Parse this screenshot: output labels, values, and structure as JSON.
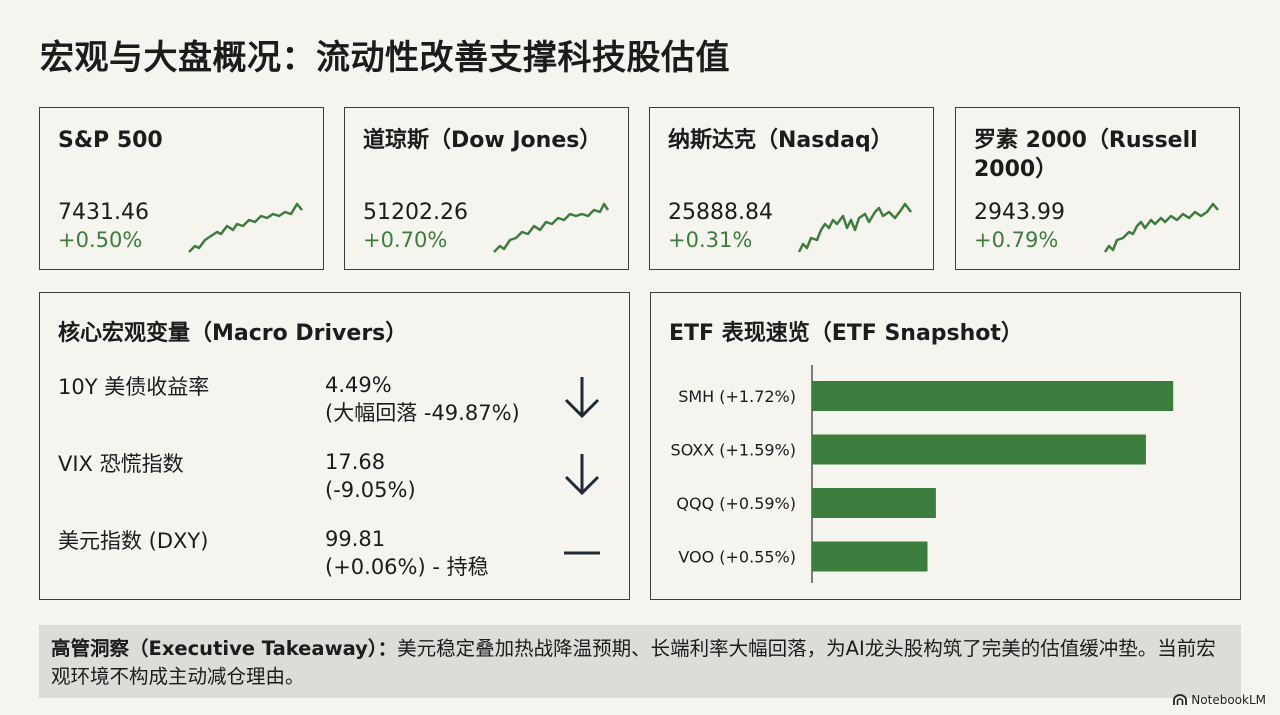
{
  "title": "宏观与大盘概况：流动性改善支撑科技股估值",
  "indices": [
    {
      "name": "S&P 500",
      "value": "7431.46",
      "change": "+0.50%"
    },
    {
      "name": "道琼斯（Dow Jones）",
      "value": "51202.26",
      "change": "+0.70%"
    },
    {
      "name": "纳斯达克（Nasdaq）",
      "value": "25888.84",
      "change": "+0.31%"
    },
    {
      "name": "罗素 2000（Russell 2000）",
      "value": "2943.99",
      "change": "+0.79%"
    }
  ],
  "colors": {
    "positive": "#3c7d3c",
    "bar": "#3b7d3c",
    "text": "#1c1c1c"
  },
  "macro": {
    "title": "核心宏观变量（Macro Drivers）",
    "rows": [
      {
        "label": "10Y 美债收益率",
        "value_line1": "4.49%",
        "value_line2": "(大幅回落 -49.87%)",
        "icon": "arrow-down-icon"
      },
      {
        "label": "VIX 恐慌指数",
        "value_line1": "17.68",
        "value_line2": "(-9.05%)",
        "icon": "arrow-down-icon"
      },
      {
        "label": "美元指数 (DXY)",
        "value_line1": "99.81",
        "value_line2": "(+0.06%) - 持稳",
        "icon": "flat-dash-icon"
      }
    ]
  },
  "etf": {
    "title": "ETF 表现速览（ETF Snapshot）"
  },
  "chart_data": {
    "type": "bar",
    "orientation": "horizontal",
    "categories": [
      "SMH (+1.72%)",
      "SOXX (+1.59%)",
      "QQQ (+0.59%)",
      "VOO (+0.55%)"
    ],
    "values": [
      1.72,
      1.59,
      0.59,
      0.55
    ],
    "xlim": [
      0,
      2.0
    ],
    "grid": false
  },
  "takeaway": {
    "label": "高管洞察（Executive Takeaway）：",
    "text": "美元稳定叠加热战降温预期、长端利率大幅回落，为AI龙头股构筑了完美的估值缓冲垫。当前宏观环境不构成主动减仓理由。"
  },
  "watermark": "NotebookLM"
}
